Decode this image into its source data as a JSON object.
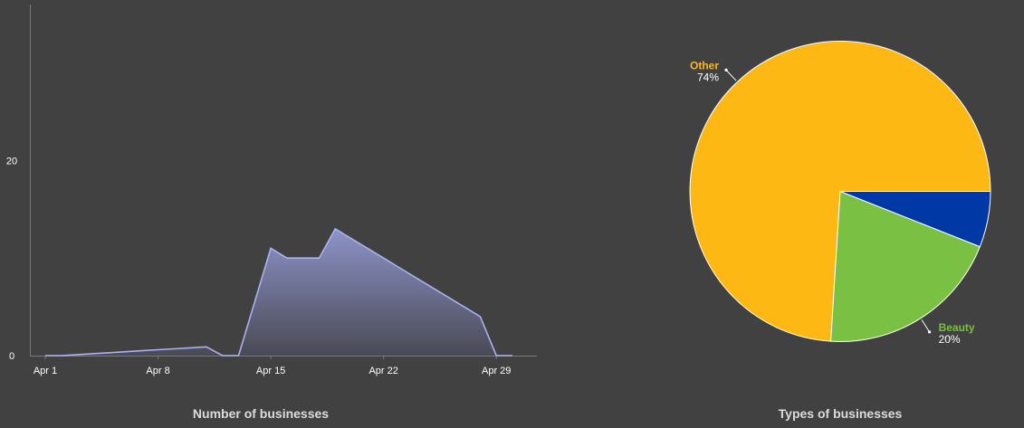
{
  "chart_data": [
    {
      "type": "area",
      "title": "Number of businesses",
      "xlabel": "",
      "ylabel": "",
      "ylim": [
        0,
        36
      ],
      "x_ticks": [
        "Apr 1",
        "Apr 8",
        "Apr 15",
        "Apr 22",
        "Apr 29"
      ],
      "y_ticks": [
        "0",
        "20"
      ],
      "x": [
        "Apr 1",
        "Apr 2",
        "Apr 3",
        "Apr 4",
        "Apr 5",
        "Apr 6",
        "Apr 7",
        "Apr 8",
        "Apr 9",
        "Apr 10",
        "Apr 11",
        "Apr 12",
        "Apr 13",
        "Apr 14",
        "Apr 15",
        "Apr 16",
        "Apr 17",
        "Apr 18",
        "Apr 19",
        "Apr 20",
        "Apr 21",
        "Apr 22",
        "Apr 23",
        "Apr 24",
        "Apr 25",
        "Apr 26",
        "Apr 27",
        "Apr 28",
        "Apr 29",
        "Apr 30"
      ],
      "values": [
        0,
        0,
        0.1,
        0.2,
        0.3,
        0.4,
        0.5,
        0.6,
        0.7,
        0.8,
        0.9,
        0,
        0,
        5.5,
        11,
        10,
        10,
        10,
        13,
        12,
        11,
        10,
        9,
        8,
        7,
        6,
        5,
        4,
        0,
        0
      ],
      "grid": false,
      "colors": {
        "line": "#a9b3f2",
        "fill_top": "#8d93c8",
        "fill_bottom": "#4a4a55",
        "axis": "#7a7a7a"
      }
    },
    {
      "type": "pie",
      "title": "Types of businesses",
      "slices": [
        {
          "name": "Other",
          "value": 74,
          "label": "74%",
          "color": "#fdb813",
          "show_label": true
        },
        {
          "name": "Beauty",
          "value": 20,
          "label": "20%",
          "color": "#7ac143",
          "show_label": true
        },
        {
          "name": "",
          "value": 6,
          "label": "",
          "color": "#0039a6",
          "show_label": false
        }
      ]
    }
  ]
}
